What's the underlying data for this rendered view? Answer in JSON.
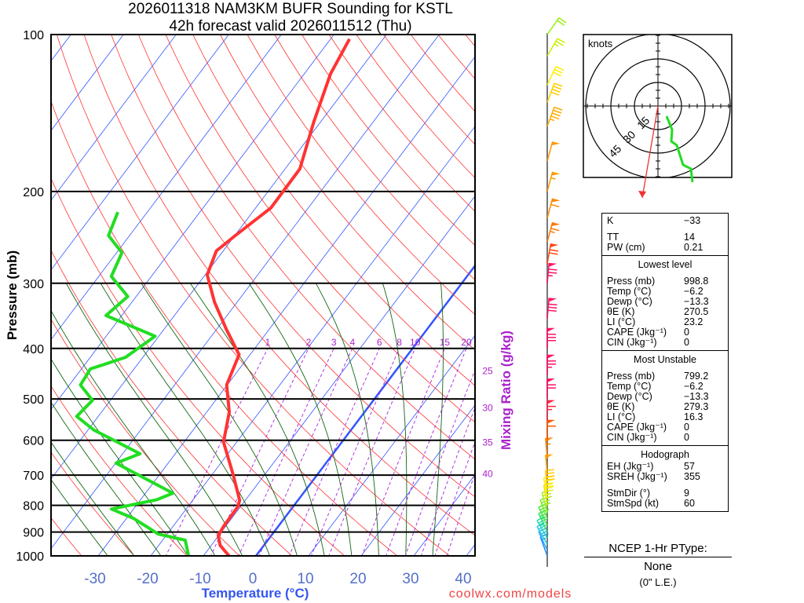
{
  "chart_data": {
    "type": "line",
    "subtype": "skew-T log-p",
    "title": "2026011318 NAM3KM BUFR Sounding for KSTL",
    "subtitle": "42h forecast valid 2026011512 (Thu)",
    "xlabel": "Temperature (°C)",
    "ylabel": "Pressure (mb)",
    "y2label": "Mixing Ratio (g/kg)",
    "credit": "coolwx.com/models",
    "xlim": [
      -38,
      42
    ],
    "ylim": [
      1050,
      100
    ],
    "pressure_ticks": [
      "100",
      "200",
      "300",
      "400",
      "500",
      "600",
      "700",
      "800",
      "900",
      "1000"
    ],
    "temperature_ticks": [
      "-30",
      "-20",
      "-10",
      "0",
      "10",
      "20",
      "30",
      "40"
    ],
    "mixing_ratio_labels": [
      "1",
      "2",
      "3",
      "4",
      "6",
      "8",
      "10",
      "15",
      "20",
      "25",
      "30",
      "35",
      "40"
    ],
    "series": [
      {
        "name": "Temperature",
        "color": "#ff3333",
        "points": [
          [
            1000,
            -5.1
          ],
          [
            955,
            -8.3
          ],
          [
            914,
            -10.1
          ],
          [
            877,
            -10.4
          ],
          [
            804,
            -10.5
          ],
          [
            782,
            -11.1
          ],
          [
            700,
            -15.9
          ],
          [
            605,
            -22.5
          ],
          [
            530,
            -25.7
          ],
          [
            470,
            -30.1
          ],
          [
            411,
            -32.1
          ],
          [
            368,
            -38.1
          ],
          [
            326,
            -44.3
          ],
          [
            289,
            -49.6
          ],
          [
            260,
            -51.3
          ],
          [
            243,
            -49.9
          ],
          [
            215,
            -47.1
          ],
          [
            181,
            -47.2
          ],
          [
            147,
            -51.3
          ],
          [
            119,
            -55.0
          ],
          [
            102,
            -56.4
          ]
        ]
      },
      {
        "name": "Dewpoint",
        "color": "#22dd22",
        "points": [
          [
            1000,
            -12.8
          ],
          [
            933,
            -15.7
          ],
          [
            908,
            -21.7
          ],
          [
            847,
            -28.7
          ],
          [
            813,
            -34.2
          ],
          [
            780,
            -26.9
          ],
          [
            758,
            -24.8
          ],
          [
            664,
            -39.9
          ],
          [
            637,
            -36.7
          ],
          [
            574,
            -48.8
          ],
          [
            540,
            -54.1
          ],
          [
            503,
            -53.4
          ],
          [
            470,
            -57.9
          ],
          [
            438,
            -58.3
          ],
          [
            416,
            -53.3
          ],
          [
            379,
            -50.7
          ],
          [
            346,
            -63.0
          ],
          [
            318,
            -61.6
          ],
          [
            291,
            -67.6
          ],
          [
            262,
            -69.0
          ],
          [
            243,
            -74.0
          ],
          [
            219,
            -75.6
          ]
        ]
      }
    ],
    "wind_barbs": [
      [
        1000,
        340,
        15,
        "#2288ff"
      ],
      [
        975,
        335,
        20,
        "#22aaff"
      ],
      [
        950,
        330,
        22,
        "#22ccdd"
      ],
      [
        925,
        330,
        25,
        "#22ddaa"
      ],
      [
        900,
        335,
        28,
        "#33dd66"
      ],
      [
        875,
        335,
        30,
        "#44ee33"
      ],
      [
        850,
        340,
        32,
        "#77ee22"
      ],
      [
        825,
        345,
        35,
        "#aaee22"
      ],
      [
        800,
        350,
        38,
        "#ddee11"
      ],
      [
        775,
        350,
        40,
        "#ffee00"
      ],
      [
        750,
        355,
        42,
        "#ffcc00"
      ],
      [
        700,
        355,
        50,
        "#ffaa00"
      ],
      [
        650,
        355,
        55,
        "#ff8800"
      ],
      [
        600,
        0,
        60,
        "#ff5500"
      ],
      [
        550,
        0,
        65,
        "#ff2244"
      ],
      [
        500,
        0,
        70,
        "#ff1166"
      ],
      [
        450,
        0,
        75,
        "#ff1166"
      ],
      [
        400,
        0,
        80,
        "#ff1166"
      ],
      [
        350,
        5,
        80,
        "#ff1166"
      ],
      [
        300,
        5,
        75,
        "#ff1166"
      ],
      [
        275,
        10,
        70,
        "#ff4411"
      ],
      [
        250,
        15,
        65,
        "#ff7700"
      ],
      [
        225,
        15,
        60,
        "#ff8800"
      ],
      [
        200,
        15,
        55,
        "#ff9900"
      ],
      [
        175,
        15,
        50,
        "#ff9900"
      ],
      [
        150,
        20,
        45,
        "#ffaa00"
      ],
      [
        135,
        20,
        40,
        "#ffcc00"
      ],
      [
        125,
        25,
        30,
        "#ffee00"
      ],
      [
        110,
        30,
        25,
        "#ccee00"
      ],
      [
        100,
        35,
        20,
        "#99ee11"
      ]
    ],
    "hodograph": {
      "units_label": "knots",
      "ring_labels": [
        "15",
        "30",
        "45"
      ],
      "trace_uv_kt": [
        [
          5.5,
          -6.5
        ],
        [
          9,
          -15
        ],
        [
          8.5,
          -22.5
        ],
        [
          12,
          -25
        ],
        [
          16,
          -37.5
        ],
        [
          21,
          -40
        ],
        [
          22,
          -48.5
        ]
      ],
      "storm_motion_uv_kt": [
        -10,
        -58.5
      ]
    }
  },
  "stats": {
    "indices": [
      {
        "k": "K",
        "v": "−33"
      },
      {
        "k": "TT",
        "v": "14"
      },
      {
        "k": "PW (cm)",
        "v": "0.21"
      }
    ],
    "lowest": {
      "title": "Lowest level",
      "rows": [
        {
          "k": "Press (mb)",
          "v": "998.8"
        },
        {
          "k": "Temp (°C)",
          "v": "−6.2"
        },
        {
          "k": "Dewp (°C)",
          "v": "−13.3"
        },
        {
          "k": "θE (K)",
          "v": "270.5"
        },
        {
          "k": "LI (°C)",
          "v": "23.2"
        },
        {
          "k": "CAPE (Jkg⁻¹)",
          "v": "0"
        },
        {
          "k": "CIN (Jkg⁻¹)",
          "v": "0"
        }
      ]
    },
    "most_unstable": {
      "title": "Most Unstable",
      "rows": [
        {
          "k": "Press (mb)",
          "v": "799.2"
        },
        {
          "k": "Temp (°C)",
          "v": "−6.2"
        },
        {
          "k": "Dewp (°C)",
          "v": "−13.3"
        },
        {
          "k": "θE (K)",
          "v": "279.3"
        },
        {
          "k": "LI (°C)",
          "v": "16.3"
        },
        {
          "k": "CAPE (Jkg⁻¹)",
          "v": "0"
        },
        {
          "k": "CIN (Jkg⁻¹)",
          "v": "0"
        }
      ]
    },
    "hodograph": {
      "title": "Hodograph",
      "rows": [
        {
          "k": "EH (Jkg⁻¹)",
          "v": "57"
        },
        {
          "k": "SREH (Jkg⁻¹)",
          "v": "355"
        },
        {
          "k": "StmDir (°)",
          "v": "9"
        },
        {
          "k": "StmSpd (kt)",
          "v": "60"
        }
      ]
    }
  },
  "ptype": {
    "heading": "NCEP 1-Hr PType:",
    "value": "None",
    "liquid_equiv": "(0\" L.E.)"
  }
}
